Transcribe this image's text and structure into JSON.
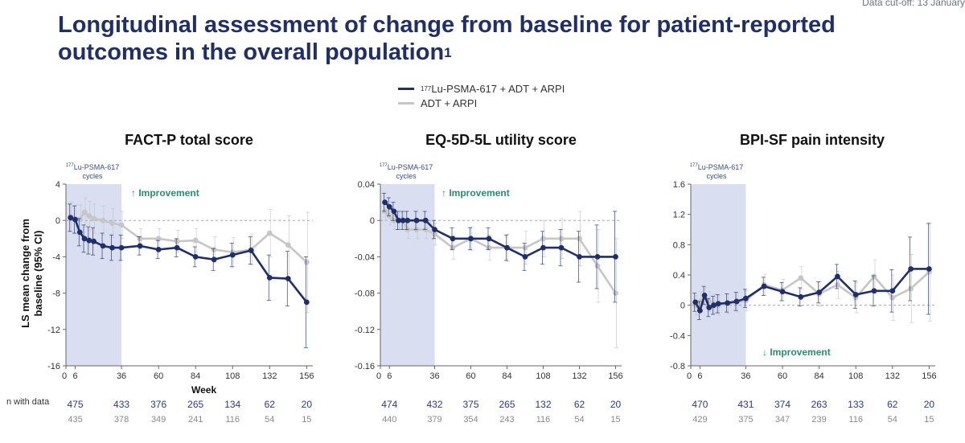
{
  "header": {
    "data_cutoff": "Data cut-off: 13 January",
    "title": "Longitudinal assessment of change from baseline for patient-reported outcomes in the overall population",
    "title_ref": "1"
  },
  "legend": {
    "series1_sup": "177",
    "series1_label": "Lu-PSMA-617 + ADT + ARPI",
    "series2_label": "ADT + ARPI"
  },
  "shared": {
    "ylabel_line1": "LS mean change from",
    "ylabel_line2": "baseline (95% CI)",
    "xlabel": "Week",
    "n_with_data": "n with data",
    "cycles_sup": "177",
    "cycles_line1": "Lu-PSMA-617",
    "cycles_line2": "cycles",
    "improvement": "Improvement"
  },
  "colors": {
    "series1": "#1f2f6b",
    "series2": "#c6c6c6",
    "shade": "#d9dff0",
    "improvement": "#2e8b6e",
    "n_series1": "#2b3a85",
    "n_series2": "#8a8a8a"
  },
  "chart_data": [
    {
      "type": "line",
      "title": "FACT-P total score",
      "xlabel": "Week",
      "ylabel": "LS mean change from baseline (95% CI)",
      "xlim": [
        0,
        160
      ],
      "ylim": [
        -16,
        4
      ],
      "xticks": [
        0,
        6,
        36,
        60,
        84,
        108,
        132,
        156
      ],
      "yticks": [
        4,
        0,
        -4,
        -8,
        -12,
        -16
      ],
      "shade_range": [
        0,
        36
      ],
      "improvement_direction": "up",
      "series": [
        {
          "name": "177Lu-PSMA-617 + ADT + ARPI",
          "x": [
            3,
            6,
            9,
            12,
            15,
            18,
            24,
            30,
            36,
            48,
            60,
            72,
            84,
            96,
            108,
            120,
            132,
            144,
            156
          ],
          "y": [
            0.3,
            0.1,
            -1.3,
            -2.0,
            -2.2,
            -2.3,
            -2.8,
            -3.0,
            -3.0,
            -2.8,
            -3.2,
            -3.0,
            -4.0,
            -4.3,
            -3.8,
            -3.3,
            -6.3,
            -6.4,
            -9.0
          ],
          "err": [
            1.5,
            1.5,
            1.5,
            1.5,
            1.5,
            1.5,
            1.4,
            1.4,
            1.4,
            1.0,
            1.0,
            1.0,
            1.1,
            1.2,
            1.3,
            1.5,
            2.5,
            3.0,
            5.0
          ]
        },
        {
          "name": "ADT + ARPI",
          "x": [
            3,
            6,
            9,
            12,
            15,
            18,
            24,
            30,
            36,
            48,
            60,
            72,
            84,
            96,
            108,
            120,
            132,
            144,
            156
          ],
          "y": [
            0.4,
            0.1,
            0.1,
            0.9,
            0.5,
            0.2,
            0.0,
            -0.3,
            -0.5,
            -2.0,
            -2.0,
            -2.3,
            -2.2,
            -3.2,
            -3.5,
            -3.2,
            -1.4,
            -2.7,
            -4.6
          ],
          "err": [
            1.6,
            1.6,
            1.6,
            1.6,
            1.6,
            1.6,
            1.6,
            1.6,
            1.5,
            1.1,
            1.1,
            1.2,
            1.3,
            1.4,
            1.6,
            1.7,
            2.6,
            3.2,
            5.5
          ]
        }
      ],
      "n_with_data": {
        "weeks": [
          6,
          36,
          60,
          84,
          108,
          132,
          156
        ],
        "series1": [
          "475",
          "433",
          "376",
          "265",
          "134",
          "62",
          "20"
        ],
        "series2": [
          "435",
          "378",
          "349",
          "241",
          "116",
          "54",
          "15"
        ]
      }
    },
    {
      "type": "line",
      "title": "EQ-5D-5L utility score",
      "xlabel": "Week",
      "ylabel": "LS mean change from baseline (95% CI)",
      "xlim": [
        0,
        160
      ],
      "ylim": [
        -0.16,
        0.04
      ],
      "xticks": [
        0,
        6,
        36,
        60,
        84,
        108,
        132,
        156
      ],
      "yticks": [
        0.04,
        0,
        -0.04,
        -0.08,
        -0.12,
        -0.16
      ],
      "shade_range": [
        0,
        36
      ],
      "improvement_direction": "up",
      "series": [
        {
          "name": "177Lu-PSMA-617 + ADT + ARPI",
          "x": [
            3,
            6,
            9,
            12,
            15,
            18,
            24,
            30,
            36,
            48,
            60,
            72,
            84,
            96,
            108,
            120,
            132,
            144,
            156
          ],
          "y": [
            0.02,
            0.015,
            0.01,
            0.0,
            0.0,
            0.0,
            0.0,
            0.0,
            -0.01,
            -0.02,
            -0.02,
            -0.02,
            -0.03,
            -0.04,
            -0.03,
            -0.03,
            -0.04,
            -0.04,
            -0.04
          ],
          "err": [
            0.01,
            0.01,
            0.01,
            0.01,
            0.01,
            0.01,
            0.01,
            0.01,
            0.01,
            0.012,
            0.012,
            0.012,
            0.014,
            0.015,
            0.018,
            0.02,
            0.028,
            0.035,
            0.05
          ]
        },
        {
          "name": "ADT + ARPI",
          "x": [
            3,
            6,
            9,
            12,
            15,
            18,
            24,
            30,
            36,
            48,
            60,
            72,
            84,
            96,
            108,
            120,
            132,
            144,
            156
          ],
          "y": [
            0.01,
            0.005,
            0.0,
            0.0,
            0.0,
            -0.01,
            -0.01,
            -0.01,
            -0.015,
            -0.03,
            -0.02,
            -0.03,
            -0.03,
            -0.03,
            -0.02,
            -0.02,
            -0.02,
            -0.05,
            -0.08
          ],
          "err": [
            0.01,
            0.01,
            0.01,
            0.01,
            0.01,
            0.01,
            0.01,
            0.01,
            0.012,
            0.013,
            0.013,
            0.014,
            0.015,
            0.018,
            0.02,
            0.022,
            0.03,
            0.04,
            0.06
          ]
        }
      ],
      "n_with_data": {
        "weeks": [
          6,
          36,
          60,
          84,
          108,
          132,
          156
        ],
        "series1": [
          "474",
          "432",
          "375",
          "265",
          "132",
          "62",
          "20"
        ],
        "series2": [
          "440",
          "379",
          "354",
          "243",
          "116",
          "54",
          "15"
        ]
      }
    },
    {
      "type": "line",
      "title": "BPI-SF pain intensity",
      "xlabel": "Week",
      "ylabel": "LS mean change from baseline (95% CI)",
      "xlim": [
        0,
        160
      ],
      "ylim": [
        -0.8,
        1.6
      ],
      "xticks": [
        0,
        6,
        36,
        60,
        84,
        108,
        132,
        156
      ],
      "yticks": [
        1.6,
        1.2,
        0.8,
        0.4,
        0,
        -0.4,
        -0.8
      ],
      "shade_range": [
        0,
        36
      ],
      "improvement_direction": "down",
      "series": [
        {
          "name": "177Lu-PSMA-617 + ADT + ARPI",
          "x": [
            3,
            6,
            9,
            12,
            15,
            18,
            24,
            30,
            36,
            48,
            60,
            72,
            84,
            96,
            108,
            120,
            132,
            144,
            156
          ],
          "y": [
            0.04,
            -0.07,
            0.13,
            -0.03,
            0.0,
            0.02,
            0.03,
            0.05,
            0.09,
            0.25,
            0.18,
            0.11,
            0.17,
            0.38,
            0.14,
            0.19,
            0.19,
            0.48,
            0.48
          ],
          "err": [
            0.12,
            0.12,
            0.12,
            0.12,
            0.12,
            0.12,
            0.12,
            0.12,
            0.12,
            0.12,
            0.12,
            0.12,
            0.14,
            0.16,
            0.18,
            0.2,
            0.28,
            0.42,
            0.6
          ]
        },
        {
          "name": "ADT + ARPI",
          "x": [
            3,
            6,
            9,
            12,
            15,
            18,
            24,
            30,
            36,
            48,
            60,
            72,
            84,
            96,
            108,
            120,
            132,
            144,
            156
          ],
          "y": [
            0.0,
            0.05,
            0.1,
            0.05,
            0.02,
            0.0,
            0.02,
            0.04,
            0.06,
            0.27,
            0.2,
            0.36,
            0.15,
            0.27,
            0.1,
            0.38,
            0.1,
            0.22,
            0.44
          ],
          "err": [
            0.13,
            0.13,
            0.13,
            0.13,
            0.13,
            0.13,
            0.13,
            0.13,
            0.13,
            0.14,
            0.14,
            0.15,
            0.16,
            0.18,
            0.2,
            0.22,
            0.3,
            0.45,
            0.65
          ]
        }
      ],
      "n_with_data": {
        "weeks": [
          6,
          36,
          60,
          84,
          108,
          132,
          156
        ],
        "series1": [
          "470",
          "431",
          "374",
          "263",
          "133",
          "62",
          "20"
        ],
        "series2": [
          "429",
          "375",
          "347",
          "239",
          "116",
          "54",
          "15"
        ]
      }
    }
  ]
}
